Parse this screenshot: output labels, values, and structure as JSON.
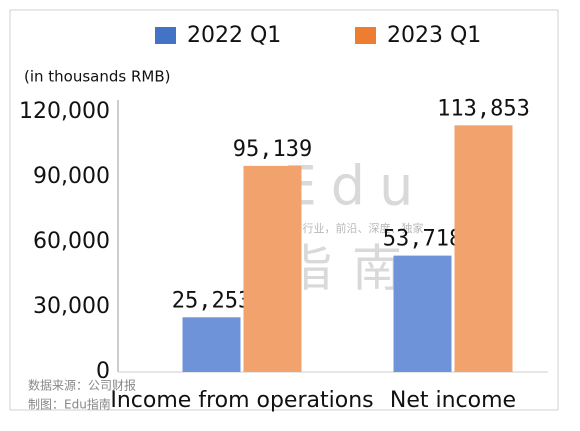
{
  "chart_data": {
    "type": "bar",
    "unit_label": "(in thousands RMB)",
    "categories": [
      "Income from operations",
      "Net income"
    ],
    "series": [
      {
        "name": "2022 Q1",
        "color": "#6f93d9",
        "legend_color": "#4472c4",
        "values": [
          25253,
          53718
        ],
        "value_labels": [
          "25,253",
          "53,718"
        ]
      },
      {
        "name": "2023 Q1",
        "color": "#f2a26c",
        "legend_color": "#ed7d31",
        "values": [
          95139,
          113853
        ],
        "value_labels": [
          "95,139",
          "113,853"
        ]
      }
    ],
    "ylim": [
      0,
      120000
    ],
    "yticks": [
      0,
      {
        "value": 30000,
        "label": "30,000"
      },
      {
        "value": 60000,
        "label": "60,000"
      },
      {
        "value": 90000,
        "label": "90,000"
      },
      {
        "value": 120000,
        "label": "120,000"
      }
    ],
    "grid": false,
    "legend_position": "top",
    "watermark": {
      "brand": "Edu",
      "slogan": "教育行业，前沿、深度、独家",
      "brand_cn": "指南"
    },
    "source": "数据来源：公司财报",
    "credit": "制图：Edu指南"
  }
}
